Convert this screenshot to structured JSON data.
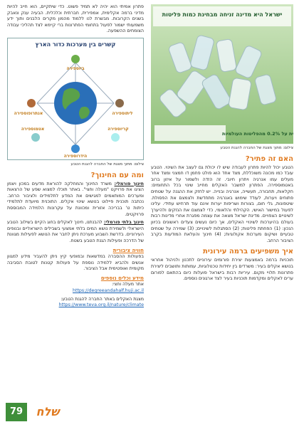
{
  "right_column": {
    "image_box": {
      "title": "ישראל היא מדינה זניחה מבחינת כמות פליטות",
      "footnote": "ישראל אחראית על 0.2% מהפליטות העולמיות"
    },
    "image_caption": "צילום: מתוך מצגת של החברה להגנת הטבע",
    "sections": [
      {
        "heading": "האם זה פתיר?",
        "paragraphs": [
          "הטבע יכול להיות פתרון לעבודה שיש לו יכולת גם לעצב את השינוי. הטבע עובד כמו מכונה משוכללת, מצד אחד הוא פולט פחמן דו חמצני ומצד אחר מעלים עמו אנרגיה ויתרון חיובי. זה הזדה ולשמור על איזון ברוב באטמוספירה. הפתרון למשבר האקלים מחייב שינוי בכל התחומים: חקלאות, תחבורה, תעשייה, אנרגיה ובנייה. יש לחזק את ההגנה על שטחים פתוחים ויערות, לעודד שימוש באנרגיה מתחדשת ולצמצם את הפסולת. שיטפונות, גלי חום, בצורות ושריפות יערות אינם עוד תרחיש עתידי. עלינו לפעול במישור האישי, הקהילתי והלאומי, כדי לצמצם את הנזקים ולהיערך לשינויים הצפויים. מדינת ישראל מצאה את עצמה מפגרת אחרי מדינות רבות בעולם בהיערכות לשינויי האקלים, אך כיום נעשים צעדים ראשונים בכיוון הנכון: (1) הפחתת פליטות; (2) הסתגלות לשינויים; (3) שמירה על שטחים טבעיים ושיקום מערכות אקולוגיות; (4) חינוך והעלאת המודעות בקרב הציבור הרחב."
        ]
      },
      {
        "heading": "איך משפיעים ברמה עירונית",
        "paragraphs": [
          "תוכניות ברמה באמצעות יצירת פורומים עירוניים לתכנון ולניהול אחראי בנושא אקלים בעיר: משרדים בין יחידות טכנולוגיות, עמותות ותושבים ליצירת פתרונות תלויי מקום. עיריות רבות בישראל פועלות כיום בהתאם לפורום ערים לאקלים ומקדמות תוכניות בעיר לצד ארגונים נוספים."
        ]
      }
    ]
  },
  "left_column": {
    "intro": "פתרון אמיתי הוא יהיה לא תמיד פשוט. כדי שיתקיים, הוא חייב להיות מדיני ברמה אקלימית, אמפירית, חברתית וכלכלית. הבעיה ענק ונאבק בשנים הקרובות. מבשרת לנו ללמוד מהמון מקרים הלבנים ותוך ידע משמעותי ישמור לפעול בתחומי הפתרונות ברי קיימא לצד תהליכי עבודה הצומחים ההשפעה.",
    "diagram": {
      "title": "קשרים בין מערכות כדור הארץ",
      "labels": [
        "ביוספירה",
        "אנתרופוספירה",
        "ליתוספירה",
        "אטמוספירה",
        "קריוספירה",
        "הידרוספירה"
      ]
    },
    "diagram_caption": "צילום: מתוך מצגת של החברה להגנת הטבע",
    "education": {
      "heading": "ומה עם החינוך?",
      "formal_label": "חינוך פורמלי:",
      "formal_text": "משרד החינוך והמחלקה להוראת מדעים במכון ויצמן הציגו את פרויקט \"מעלה וחצי\". באתר תוכלו למצוא שפע של הרצאות ומערכים המותאמים למגישים את המדע לתלמידים ולציבור הרחב. נכתבה תוכנית פיילוט בנושא שינוי אקלים. התוכנית מיועדת לתלמידי כיתות ט' בבריכה אזורית ומכוונת על עקרונות הלמידה המבוססת פרויקטים.",
      "informal_label": "חינוך בלתי פורמלי:",
      "informal_text": "להבנתנו, חינוך לאקלים בחוג הקיים בשילוב הטבע הישראלי ולשמירת נושא המים בלתי אמצעי בשבילים הישראליים ובנופים העירוניים. בדרשת השבוע מערכת ניתן לחבר את הנושא לפעילות מגוונת של הדרכה ופעילות הגנת הטבע בשטח."
    },
    "public": {
      "heading": "חוויה ציבורית",
      "text": "בפעולות ההסברה במדשאות ובמופעי קיץ ניתן להעביר מידע למגוון אנשים ולהביא ללמידה נוספת על פעולות קטנות לטובת הסביבה מקומית ואופטימית אבל הציבור."
    },
    "resources": {
      "heading": "מידע וכלים נוספים",
      "items": [
        {
          "label": "אתר מעלה וחצי:",
          "url": "https://degreeandahalf.huji.ac.il"
        },
        {
          "label": "מצגת האקלים באתר החברה להגנת הטבע:",
          "url": "https://www.teva.org.il/nature/climate"
        }
      ]
    }
  },
  "footer": {
    "page_number": "79",
    "logo": "שלח"
  }
}
